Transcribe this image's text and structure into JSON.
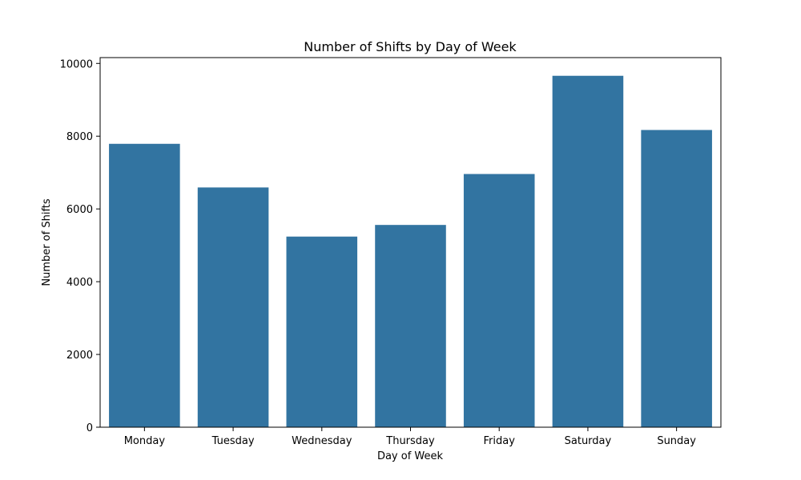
{
  "chart_data": {
    "type": "bar",
    "title": "Number of Shifts by Day of Week",
    "xlabel": "Day of Week",
    "ylabel": "Number of Shifts",
    "categories": [
      "Monday",
      "Tuesday",
      "Wednesday",
      "Thursday",
      "Friday",
      "Saturday",
      "Sunday"
    ],
    "values": [
      7790,
      6590,
      5240,
      5560,
      6960,
      9660,
      8170
    ],
    "ylim": [
      0,
      10160
    ],
    "yticks": [
      0,
      2000,
      4000,
      6000,
      8000,
      10000
    ],
    "grid": false,
    "legend": "none",
    "bar_color": "#3274a1"
  }
}
